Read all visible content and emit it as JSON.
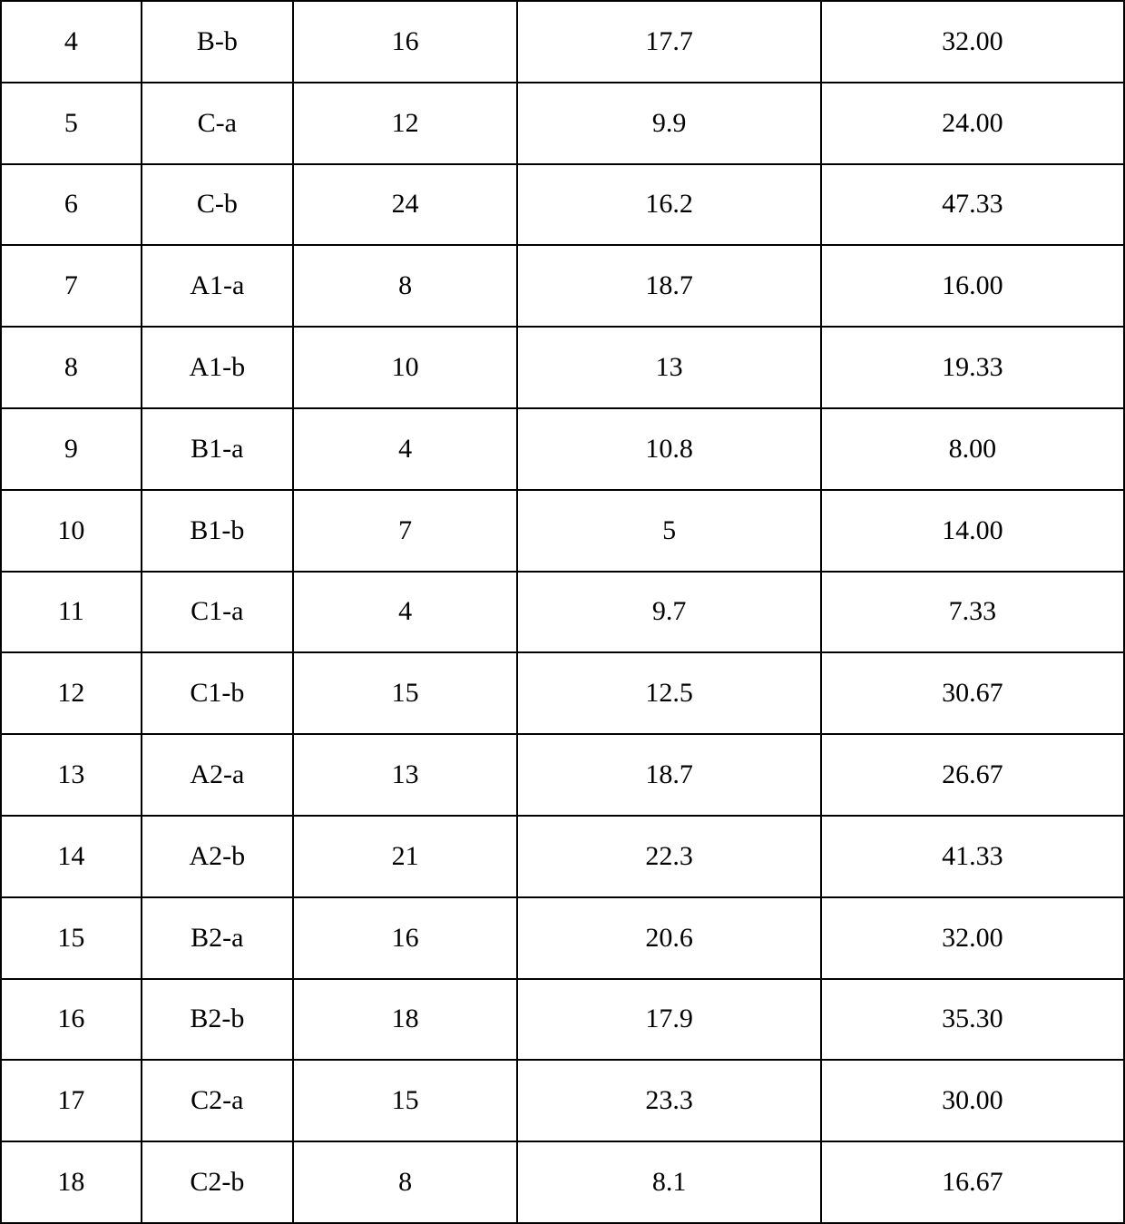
{
  "table": {
    "border_color": "#000000",
    "border_width": 2,
    "background_color": "#ffffff",
    "text_color": "#000000",
    "font_family": "Times New Roman",
    "font_size": 30,
    "column_widths_pct": [
      12.5,
      13.5,
      20,
      27,
      27
    ],
    "column_alignment": [
      "center",
      "center",
      "center",
      "center",
      "center"
    ],
    "rows": [
      [
        "4",
        "B-b",
        "16",
        "17.7",
        "32.00"
      ],
      [
        "5",
        "C-a",
        "12",
        "9.9",
        "24.00"
      ],
      [
        "6",
        "C-b",
        "24",
        "16.2",
        "47.33"
      ],
      [
        "7",
        "A1-a",
        "8",
        "18.7",
        "16.00"
      ],
      [
        "8",
        "A1-b",
        "10",
        "13",
        "19.33"
      ],
      [
        "9",
        "B1-a",
        "4",
        "10.8",
        "8.00"
      ],
      [
        "10",
        "B1-b",
        "7",
        "5",
        "14.00"
      ],
      [
        "11",
        "C1-a",
        "4",
        "9.7",
        "7.33"
      ],
      [
        "12",
        "C1-b",
        "15",
        "12.5",
        "30.67"
      ],
      [
        "13",
        "A2-a",
        "13",
        "18.7",
        "26.67"
      ],
      [
        "14",
        "A2-b",
        "21",
        "22.3",
        "41.33"
      ],
      [
        "15",
        "B2-a",
        "16",
        "20.6",
        "32.00"
      ],
      [
        "16",
        "B2-b",
        "18",
        "17.9",
        "35.30"
      ],
      [
        "17",
        "C2-a",
        "15",
        "23.3",
        "30.00"
      ],
      [
        "18",
        "C2-b",
        "8",
        "8.1",
        "16.67"
      ]
    ]
  }
}
